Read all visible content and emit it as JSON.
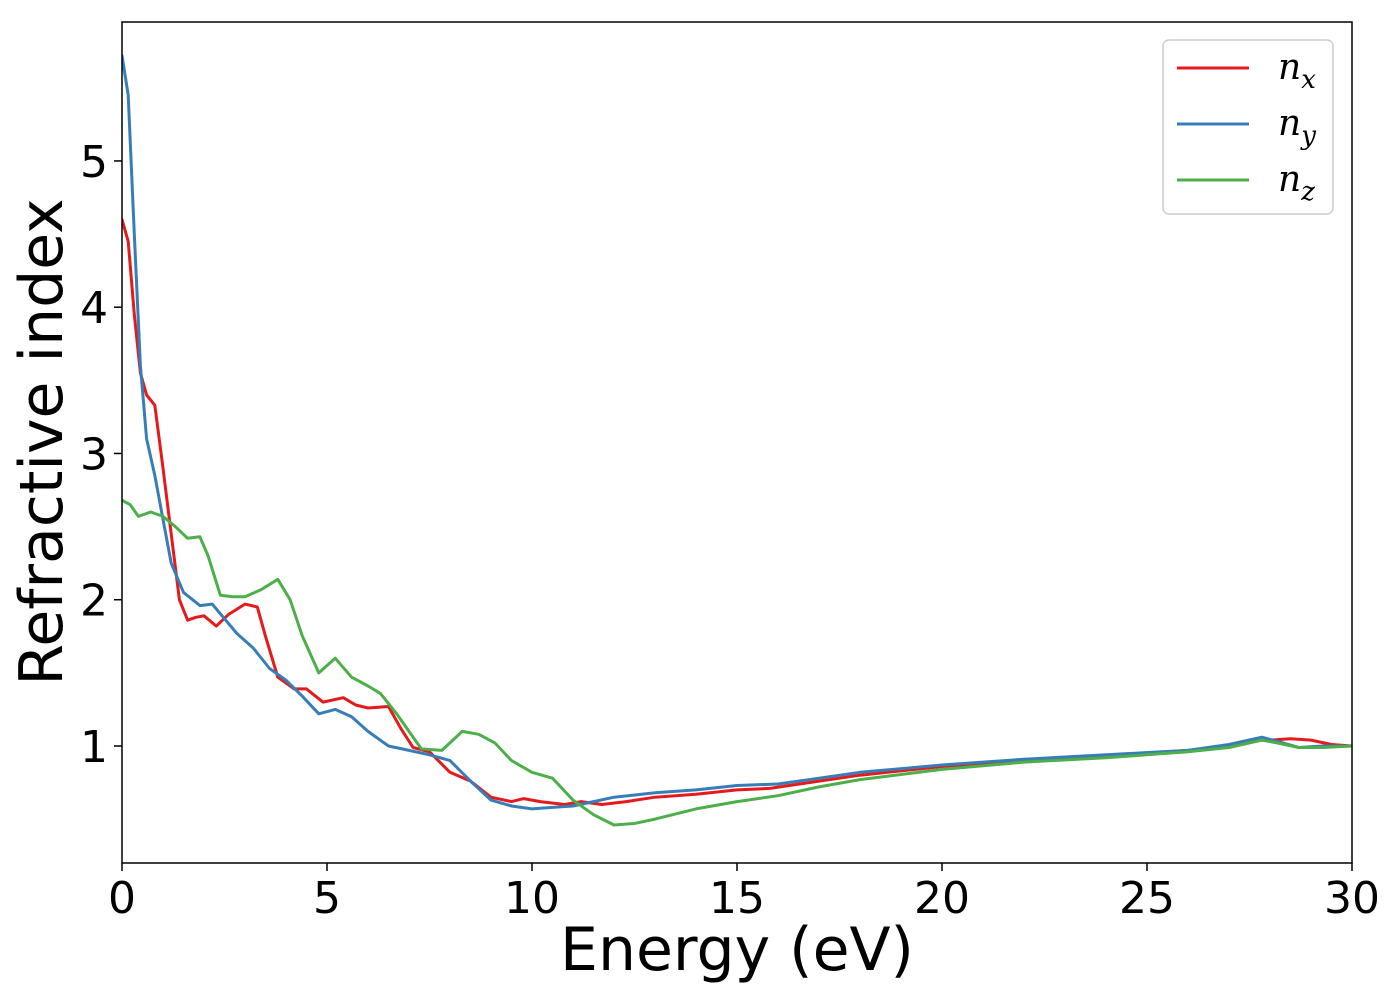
{
  "chart_data": {
    "type": "line",
    "title": "",
    "xlabel": "Energy (eV)",
    "ylabel": "Refractive index",
    "xlim": [
      0,
      30
    ],
    "ylim": [
      0.2,
      5.95
    ],
    "xticks": [
      0,
      5,
      10,
      15,
      20,
      25,
      30
    ],
    "xtick_labels": [
      "0",
      "5",
      "10",
      "15",
      "20",
      "25",
      "30"
    ],
    "yticks": [
      1,
      2,
      3,
      4,
      5
    ],
    "ytick_labels": [
      "1",
      "2",
      "3",
      "4",
      "5"
    ],
    "grid": false,
    "legend_position": "top-right",
    "series": [
      {
        "name": "n_x",
        "legend_main": "n",
        "legend_sub": "x",
        "color": "#e41a1c",
        "points": [
          [
            0,
            4.6
          ],
          [
            0.15,
            4.45
          ],
          [
            0.3,
            3.95
          ],
          [
            0.45,
            3.55
          ],
          [
            0.6,
            3.4
          ],
          [
            0.8,
            3.33
          ],
          [
            1.0,
            2.9
          ],
          [
            1.2,
            2.45
          ],
          [
            1.4,
            2.0
          ],
          [
            1.6,
            1.86
          ],
          [
            1.8,
            1.88
          ],
          [
            2.0,
            1.89
          ],
          [
            2.3,
            1.82
          ],
          [
            2.6,
            1.9
          ],
          [
            3.0,
            1.97
          ],
          [
            3.3,
            1.95
          ],
          [
            3.5,
            1.75
          ],
          [
            3.8,
            1.47
          ],
          [
            4.2,
            1.39
          ],
          [
            4.5,
            1.39
          ],
          [
            4.9,
            1.3
          ],
          [
            5.4,
            1.33
          ],
          [
            5.7,
            1.28
          ],
          [
            6.0,
            1.26
          ],
          [
            6.5,
            1.27
          ],
          [
            6.8,
            1.12
          ],
          [
            7.1,
            0.99
          ],
          [
            7.5,
            0.96
          ],
          [
            8.0,
            0.82
          ],
          [
            8.5,
            0.76
          ],
          [
            9.0,
            0.65
          ],
          [
            9.5,
            0.62
          ],
          [
            9.8,
            0.64
          ],
          [
            10.2,
            0.62
          ],
          [
            10.8,
            0.6
          ],
          [
            11.2,
            0.62
          ],
          [
            11.7,
            0.6
          ],
          [
            12.3,
            0.62
          ],
          [
            13.0,
            0.65
          ],
          [
            14.0,
            0.67
          ],
          [
            15.0,
            0.7
          ],
          [
            15.8,
            0.71
          ],
          [
            17.0,
            0.76
          ],
          [
            18.0,
            0.8
          ],
          [
            20.0,
            0.86
          ],
          [
            22.0,
            0.9
          ],
          [
            24.0,
            0.93
          ],
          [
            26.0,
            0.97
          ],
          [
            27.0,
            1.0
          ],
          [
            27.5,
            1.04
          ],
          [
            28.0,
            1.04
          ],
          [
            28.5,
            1.05
          ],
          [
            29.0,
            1.04
          ],
          [
            29.5,
            1.01
          ],
          [
            30.0,
            1.0
          ]
        ]
      },
      {
        "name": "n_y",
        "legend_main": "n",
        "legend_sub": "y",
        "color": "#377eb8",
        "points": [
          [
            0,
            5.72
          ],
          [
            0.15,
            5.45
          ],
          [
            0.3,
            4.5
          ],
          [
            0.45,
            3.6
          ],
          [
            0.6,
            3.1
          ],
          [
            0.8,
            2.85
          ],
          [
            1.0,
            2.55
          ],
          [
            1.2,
            2.25
          ],
          [
            1.5,
            2.05
          ],
          [
            1.9,
            1.96
          ],
          [
            2.2,
            1.97
          ],
          [
            2.5,
            1.87
          ],
          [
            2.8,
            1.77
          ],
          [
            3.2,
            1.67
          ],
          [
            3.6,
            1.53
          ],
          [
            4.0,
            1.45
          ],
          [
            4.4,
            1.34
          ],
          [
            4.8,
            1.22
          ],
          [
            5.2,
            1.25
          ],
          [
            5.6,
            1.2
          ],
          [
            6.0,
            1.1
          ],
          [
            6.5,
            1.0
          ],
          [
            7.0,
            0.97
          ],
          [
            7.5,
            0.94
          ],
          [
            8.0,
            0.9
          ],
          [
            8.5,
            0.76
          ],
          [
            9.0,
            0.63
          ],
          [
            9.5,
            0.59
          ],
          [
            10.0,
            0.57
          ],
          [
            10.5,
            0.58
          ],
          [
            11.0,
            0.59
          ],
          [
            11.5,
            0.62
          ],
          [
            12.0,
            0.65
          ],
          [
            13.0,
            0.68
          ],
          [
            14.0,
            0.7
          ],
          [
            15.0,
            0.73
          ],
          [
            16.0,
            0.74
          ],
          [
            17.0,
            0.78
          ],
          [
            18.0,
            0.82
          ],
          [
            20.0,
            0.87
          ],
          [
            22.0,
            0.91
          ],
          [
            24.0,
            0.94
          ],
          [
            26.0,
            0.97
          ],
          [
            27.0,
            1.01
          ],
          [
            27.8,
            1.06
          ],
          [
            28.2,
            1.03
          ],
          [
            28.7,
            0.99
          ],
          [
            29.3,
            1.0
          ],
          [
            30.0,
            1.0
          ]
        ]
      },
      {
        "name": "n_z",
        "legend_main": "n",
        "legend_sub": "z",
        "color": "#4daf4a",
        "points": [
          [
            0,
            2.68
          ],
          [
            0.2,
            2.65
          ],
          [
            0.4,
            2.57
          ],
          [
            0.7,
            2.6
          ],
          [
            1.0,
            2.57
          ],
          [
            1.3,
            2.5
          ],
          [
            1.6,
            2.42
          ],
          [
            1.9,
            2.43
          ],
          [
            2.1,
            2.3
          ],
          [
            2.4,
            2.03
          ],
          [
            2.7,
            2.02
          ],
          [
            3.0,
            2.02
          ],
          [
            3.4,
            2.07
          ],
          [
            3.8,
            2.14
          ],
          [
            4.1,
            2.0
          ],
          [
            4.4,
            1.75
          ],
          [
            4.8,
            1.5
          ],
          [
            5.2,
            1.6
          ],
          [
            5.6,
            1.47
          ],
          [
            6.0,
            1.41
          ],
          [
            6.3,
            1.36
          ],
          [
            6.7,
            1.22
          ],
          [
            7.0,
            1.1
          ],
          [
            7.3,
            0.98
          ],
          [
            7.8,
            0.97
          ],
          [
            8.3,
            1.1
          ],
          [
            8.7,
            1.08
          ],
          [
            9.1,
            1.02
          ],
          [
            9.5,
            0.9
          ],
          [
            10.0,
            0.82
          ],
          [
            10.5,
            0.78
          ],
          [
            11.0,
            0.63
          ],
          [
            11.5,
            0.53
          ],
          [
            12.0,
            0.46
          ],
          [
            12.5,
            0.47
          ],
          [
            13.0,
            0.5
          ],
          [
            14.0,
            0.57
          ],
          [
            15.0,
            0.62
          ],
          [
            16.0,
            0.66
          ],
          [
            17.0,
            0.72
          ],
          [
            18.0,
            0.77
          ],
          [
            20.0,
            0.84
          ],
          [
            22.0,
            0.89
          ],
          [
            24.0,
            0.92
          ],
          [
            26.0,
            0.96
          ],
          [
            27.0,
            0.99
          ],
          [
            27.8,
            1.04
          ],
          [
            28.2,
            1.02
          ],
          [
            28.7,
            0.99
          ],
          [
            29.3,
            0.99
          ],
          [
            30.0,
            1.0
          ]
        ]
      }
    ]
  }
}
